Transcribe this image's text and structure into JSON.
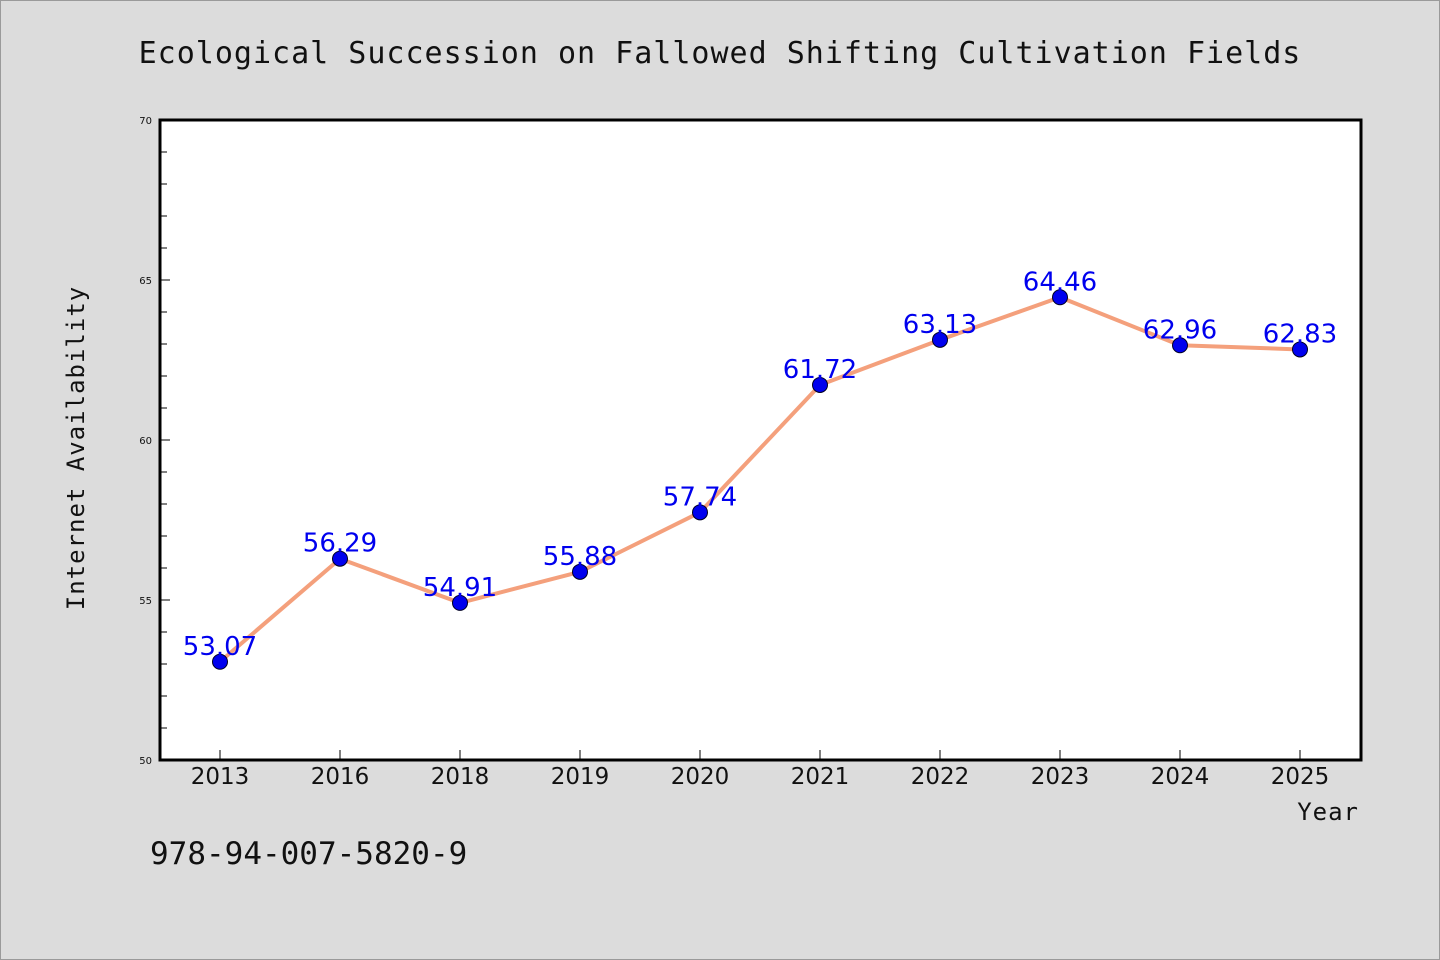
{
  "footer": {
    "code": "978-94-007-5820-9"
  },
  "colors": {
    "background": "#dcdcdc",
    "plot_area": "#ffffff",
    "line": "#f4a07c",
    "marker": "#0000ee",
    "label": "#0000ee"
  },
  "chart_data": {
    "type": "line",
    "title": "Ecological Succession on Fallowed Shifting Cultivation Fields",
    "xlabel": "Year",
    "ylabel": "Internet Availability",
    "categories": [
      "2013",
      "2016",
      "2018",
      "2019",
      "2020",
      "2021",
      "2022",
      "2023",
      "2024",
      "2025"
    ],
    "series": [
      {
        "values": [
          53.07,
          56.29,
          54.91,
          55.88,
          57.74,
          61.72,
          63.13,
          64.46,
          62.96,
          62.83
        ],
        "labels": [
          "53.07",
          "56.29",
          "54.91",
          "55.88",
          "57.74",
          "61.72",
          "63.13",
          "64.46",
          "62.96",
          "62.83"
        ]
      }
    ],
    "ylim": [
      50,
      70
    ],
    "yticks": [
      "50",
      "55",
      "60",
      "65",
      "70"
    ],
    "grid": false,
    "legend": "none",
    "markers": "circle"
  }
}
